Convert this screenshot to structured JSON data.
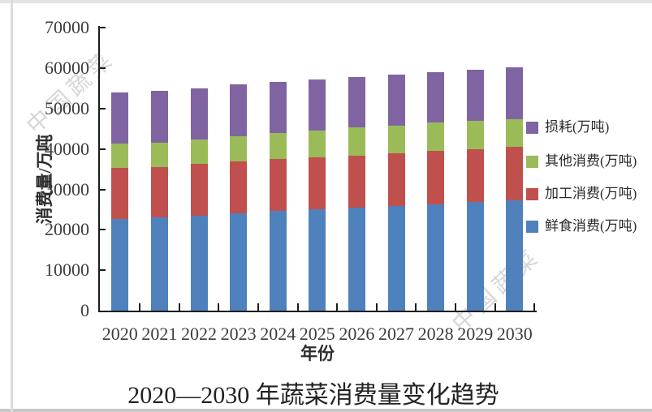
{
  "chart_data": {
    "type": "bar",
    "stacked": true,
    "title": "2020—2030 年蔬菜消费量变化趋势",
    "xlabel": "年份",
    "ylabel": "消费量/万吨",
    "ylim": [
      0,
      70000
    ],
    "ytick_interval": 10000,
    "ytick_labels": [
      "0",
      "10000",
      "20000",
      "30000",
      "40000",
      "50000",
      "60000",
      "70000"
    ],
    "grid": false,
    "legend_position": "right",
    "categories": [
      "2020",
      "2021",
      "2022",
      "2023",
      "2024",
      "2025",
      "2026",
      "2027",
      "2028",
      "2029",
      "2030"
    ],
    "series": [
      {
        "name": "鲜食消费(万吨)",
        "color": "#4F81BD",
        "values": [
          22700,
          23000,
          23400,
          24000,
          24700,
          25100,
          25500,
          25900,
          26400,
          26900,
          27400
        ]
      },
      {
        "name": "加工消费(万吨)",
        "color": "#C0504D",
        "values": [
          12600,
          12600,
          12900,
          13000,
          12900,
          12900,
          12900,
          13100,
          13200,
          13100,
          13100
        ]
      },
      {
        "name": "其他消费(万吨)",
        "color": "#9BBB59",
        "values": [
          6000,
          6000,
          6000,
          6100,
          6400,
          6600,
          6900,
          6700,
          6900,
          6900,
          6900
        ]
      },
      {
        "name": "损耗(万吨)",
        "color": "#8064A2",
        "values": [
          12800,
          12800,
          12800,
          12900,
          12700,
          12700,
          12600,
          12800,
          12600,
          12800,
          12900
        ]
      }
    ],
    "totals": [
      54100,
      54400,
      55100,
      56000,
      56700,
      57300,
      57900,
      58500,
      59100,
      59700,
      60300
    ],
    "legend_order_top_to_bottom": [
      "损耗(万吨)",
      "其他消费(万吨)",
      "加工消费(万吨)",
      "鲜食消费(万吨)"
    ]
  },
  "watermarks": {
    "first": "中国蔬菜",
    "second": "中国蔬菜"
  },
  "colors": {
    "axis": "#1c1c1c",
    "tick_text": "#3d3d3d",
    "watermark": "#d6d6d6"
  }
}
